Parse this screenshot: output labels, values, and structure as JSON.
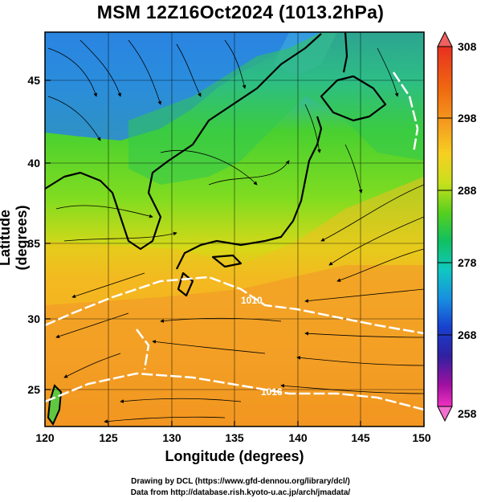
{
  "title": "MSM 12Z16Oct2024 (1013.2hPa)",
  "axes": {
    "xlabel": "Longitude (degrees)",
    "ylabel": "Latitude  (degrees)",
    "x_ticks": [
      "120",
      "125",
      "130",
      "135",
      "140",
      "145",
      "150"
    ],
    "y_ticks": [
      "25",
      "30",
      "35",
      "40",
      "45"
    ]
  },
  "colorbar": {
    "labels": [
      "308",
      "298",
      "288",
      "278",
      "268",
      "258"
    ],
    "colors": [
      "#e83020",
      "#f06a10",
      "#f5a020",
      "#f6d020",
      "#c8e01c",
      "#58d01c",
      "#10c060",
      "#10c8c0",
      "#1890e0",
      "#1840d0",
      "#3020a0",
      "#a010a0",
      "#f030c0"
    ]
  },
  "contour_labels": [
    "1010",
    "1016"
  ],
  "credits": {
    "line1": "Drawing by DCL (https://www.gfd-dennou.org/library/dcl/)",
    "line2": "Data from http://database.rish.kyoto-u.ac.jp/arch/jmadata/"
  }
}
